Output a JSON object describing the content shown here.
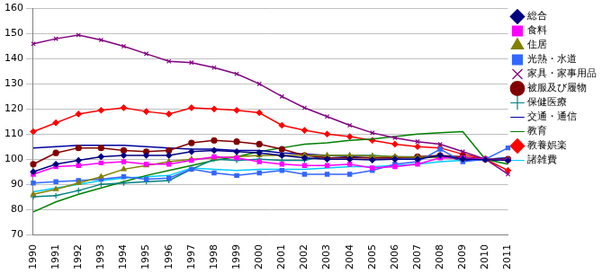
{
  "chart_data": {
    "type": "line",
    "categories": [
      "1990",
      "1991",
      "1992",
      "1993",
      "1994",
      "1995",
      "1996",
      "1997",
      "1998",
      "1999",
      "2000",
      "2001",
      "2002",
      "2003",
      "2004",
      "2005",
      "2006",
      "2007",
      "2008",
      "2009",
      "2010",
      "2011"
    ],
    "ylim": [
      70,
      160
    ],
    "yticks": [
      70,
      80,
      90,
      100,
      110,
      120,
      130,
      140,
      150,
      160
    ],
    "grid": true,
    "legend": "right",
    "series": [
      {
        "name": "総合",
        "color": "#000080",
        "marker": "diamond",
        "line_style": "solid",
        "values": [
          95,
          98,
          99.5,
          101,
          101.5,
          101.5,
          101.5,
          103,
          103.5,
          103,
          102.5,
          101.5,
          100.5,
          100,
          100,
          99.7,
          100,
          100,
          101.5,
          100.1,
          99.8,
          99.5
        ]
      },
      {
        "name": "食料",
        "color": "#ff00ff",
        "marker": "square",
        "line_style": "solid",
        "values": [
          94,
          97,
          97.5,
          98.5,
          99,
          98,
          98,
          99.5,
          101,
          100.5,
          99,
          98,
          97.5,
          97.5,
          98,
          96.5,
          97,
          98,
          100.5,
          100.5,
          100,
          99.6
        ]
      },
      {
        "name": "住居",
        "color": "#808000",
        "marker": "triangle",
        "line_style": "solid",
        "values": [
          86,
          88,
          90.5,
          93,
          96,
          97.5,
          99,
          100,
          100.5,
          101,
          101.5,
          101.5,
          101.5,
          101.5,
          101.5,
          101.2,
          101,
          100.8,
          100.6,
          100.3,
          100,
          99.8
        ]
      },
      {
        "name": "光熱・水道",
        "color": "#3366ff",
        "marker": "square",
        "line_style": "solid",
        "values": [
          90.5,
          91,
          91.5,
          92,
          93,
          92,
          92.5,
          96,
          94.5,
          93.5,
          94.5,
          95.5,
          94,
          94,
          94,
          95.5,
          98,
          99,
          104,
          99,
          100,
          104.5
        ]
      },
      {
        "name": "家具・家事用品",
        "color": "#800080",
        "marker": "x",
        "line_style": "solid",
        "values": [
          146,
          148,
          149.5,
          147.5,
          145,
          142,
          139,
          138.5,
          136.5,
          134,
          130,
          125,
          120.5,
          117,
          113.5,
          110.5,
          108.5,
          107,
          106,
          103,
          100,
          94
        ]
      },
      {
        "name": "被服及び履物",
        "color": "#800000",
        "marker": "circle",
        "line_style": "solid",
        "values": [
          98,
          102.5,
          104.5,
          104.5,
          103.5,
          103,
          103.5,
          106.5,
          107.5,
          107,
          106,
          104,
          101.5,
          100.5,
          100.5,
          100.5,
          100.5,
          101,
          101.5,
          101,
          100,
          100
        ]
      },
      {
        "name": "保健医療",
        "color": "#008080",
        "marker": "plus",
        "line_style": "solid",
        "values": [
          85,
          85.5,
          87.5,
          90,
          90.5,
          91,
          91.5,
          96,
          100,
          99.5,
          100,
          99.5,
          99.5,
          101.5,
          101.5,
          101.5,
          101,
          101,
          101,
          100.5,
          100,
          99.5
        ]
      },
      {
        "name": "交通・通信",
        "color": "#0000a0",
        "marker": "none",
        "line_style": "solid",
        "values": [
          104.5,
          105,
          105.5,
          105.5,
          105.5,
          105,
          104.5,
          104,
          104,
          103.5,
          103.5,
          102.5,
          102,
          101.5,
          101,
          100.5,
          100.5,
          100.5,
          101.5,
          99.5,
          100,
          100.5
        ]
      },
      {
        "name": "教育",
        "color": "#008000",
        "marker": "none",
        "line_style": "solid",
        "values": [
          79,
          83,
          86,
          88.5,
          91,
          93.5,
          95.5,
          97.5,
          99.5,
          101,
          103,
          104.5,
          106,
          106.5,
          107.5,
          108,
          109,
          110,
          110.5,
          111,
          100,
          98
        ]
      },
      {
        "name": "教養娯楽",
        "color": "#ff0000",
        "marker": "diamond",
        "line_style": "solid",
        "values": [
          111,
          114.5,
          118,
          119.5,
          120.5,
          119,
          118,
          120.5,
          120,
          119.5,
          118.5,
          113.5,
          111.5,
          110,
          109,
          107.5,
          106,
          105,
          104.5,
          102,
          100,
          95.5
        ]
      },
      {
        "name": "諸雑費",
        "color": "#00ccff",
        "marker": "none",
        "line_style": "solid",
        "values": [
          87,
          88.5,
          90,
          91.5,
          92.5,
          93,
          93.5,
          96.5,
          96,
          95.5,
          96,
          96,
          96,
          96.5,
          97,
          97,
          97.5,
          98,
          99,
          99.5,
          100,
          100.5
        ]
      }
    ]
  }
}
